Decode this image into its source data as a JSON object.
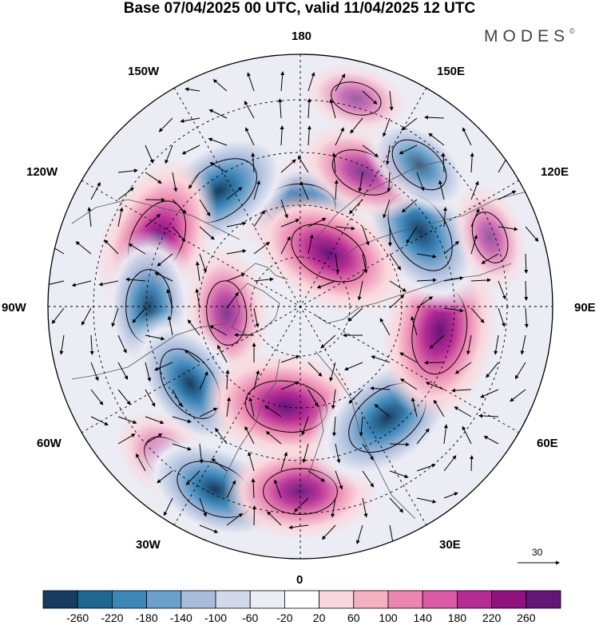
{
  "title": "Base 07/04/2025 00 UTC, valid 11/04/2025 12 UTC",
  "brand": {
    "name": "MODES",
    "mark": "©"
  },
  "longitude_labels": {
    "lon_180": "180",
    "lon_150W": "150W",
    "lon_150E": "150E",
    "lon_120W": "120W",
    "lon_120E": "120E",
    "lon_90W": "90W",
    "lon_90E": "90E",
    "lon_60W": "60W",
    "lon_60E": "60E",
    "lon_30W": "30W",
    "lon_30E": "30E",
    "lon_0": "0"
  },
  "reference_vector": {
    "label": "30"
  },
  "colorbar": {
    "colors": [
      "#173c5f",
      "#1f6690",
      "#3c86b8",
      "#6aa0cb",
      "#a9bcdc",
      "#d3d8ea",
      "#ececf4",
      "#ffffff",
      "#fad7dc",
      "#f4b1c1",
      "#ec86b0",
      "#d95aa5",
      "#b52b94",
      "#8e137f",
      "#641578"
    ],
    "tick_labels": [
      "-260",
      "-220",
      "-180",
      "-140",
      "-100",
      "-60",
      "-20",
      "20",
      "60",
      "100",
      "140",
      "180",
      "220",
      "260"
    ]
  },
  "anomaly_centers": [
    {
      "name": "pos-alaska-north",
      "lon": 190,
      "lat": 58,
      "value": 160
    },
    {
      "name": "neg-bering",
      "lon": 180,
      "lat": 60,
      "value": -180
    },
    {
      "name": "neg-north-pacific",
      "lon": 215,
      "lat": 48,
      "value": -250
    },
    {
      "name": "pos-canada-west",
      "lon": 245,
      "lat": 43,
      "value": 240
    },
    {
      "name": "neg-hudson",
      "lon": 270,
      "lat": 45,
      "value": -200
    },
    {
      "name": "pos-canadian-arctic",
      "lon": 275,
      "lat": 68,
      "value": 150
    },
    {
      "name": "neg-labrador",
      "lon": 305,
      "lat": 50,
      "value": -220
    },
    {
      "name": "pos-atlantic-west",
      "lon": 320,
      "lat": 30,
      "value": 130
    },
    {
      "name": "pos-greenland-sea",
      "lon": 352,
      "lat": 60,
      "value": 240
    },
    {
      "name": "neg-atlantic-south",
      "lon": 335,
      "lat": 30,
      "value": -230
    },
    {
      "name": "pos-iberia",
      "lon": 0,
      "lat": 35,
      "value": 200
    },
    {
      "name": "neg-europe-east",
      "lon": 38,
      "lat": 48,
      "value": -270
    },
    {
      "name": "pos-central-asia",
      "lon": 80,
      "lat": 48,
      "value": 265
    },
    {
      "name": "neg-siberia",
      "lon": 122,
      "lat": 48,
      "value": -260
    },
    {
      "name": "pos-laptev",
      "lon": 152,
      "lat": 72,
      "value": 230
    },
    {
      "name": "pos-east-siberia",
      "lon": 155,
      "lat": 46,
      "value": 150
    },
    {
      "name": "neg-kamchatka",
      "lon": 140,
      "lat": 35,
      "value": -140
    },
    {
      "name": "pos-north-east-asia",
      "lon": 110,
      "lat": 30,
      "value": 90
    },
    {
      "name": "pos-west-pacific",
      "lon": 165,
      "lat": 26,
      "value": 80
    }
  ]
}
